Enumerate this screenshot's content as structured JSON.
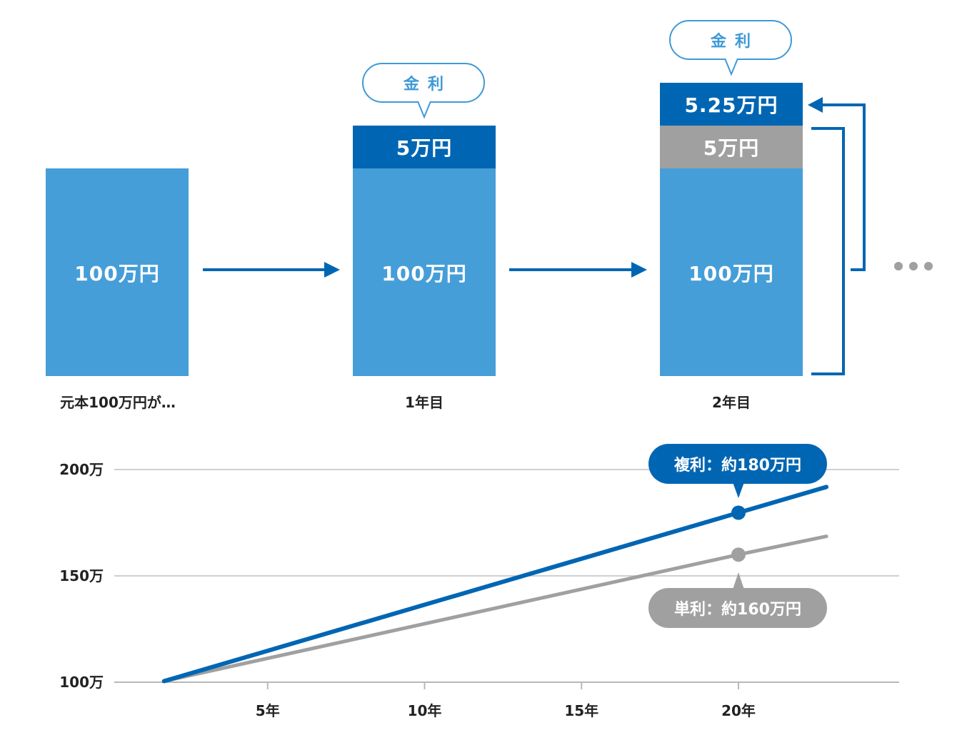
{
  "diagram": {
    "stage0": {
      "principal_label": "100万円",
      "caption": "元本100万円が…"
    },
    "stage1": {
      "principal_label": "100万円",
      "interest_label": "5万円",
      "bubble": "金利",
      "caption": "1年目"
    },
    "stage2": {
      "principal_label": "100万円",
      "prev_interest_label": "5万円",
      "interest_label": "5.25万円",
      "bubble": "金利",
      "caption": "2年目"
    },
    "colors": {
      "principal": "#469ed8",
      "interest": "#0066b3",
      "previous_interest": "#a0a0a0",
      "arrow": "#0066b3"
    }
  },
  "chart_data": {
    "type": "line",
    "y_ticks": [
      {
        "value": 100,
        "label": "100万"
      },
      {
        "value": 150,
        "label": "150万"
      },
      {
        "value": 200,
        "label": "200万"
      }
    ],
    "x_ticks": [
      {
        "value": 5,
        "label": "5年"
      },
      {
        "value": 10,
        "label": "10年"
      },
      {
        "value": 15,
        "label": "15年"
      },
      {
        "value": 20,
        "label": "20年"
      }
    ],
    "xlim": [
      0,
      25
    ],
    "ylim": [
      100,
      200
    ],
    "grid": true,
    "series": [
      {
        "key": "compound",
        "color": "#0066b3",
        "points": [
          [
            1.7,
            100.5
          ],
          [
            20,
            179.7
          ],
          [
            22.8,
            191.8
          ]
        ],
        "marker": [
          20,
          179.7
        ],
        "label": "複利：約180万円"
      },
      {
        "key": "simple",
        "color": "#a0a0a0",
        "points": [
          [
            1.7,
            100.5
          ],
          [
            20,
            160
          ],
          [
            22.8,
            168.6
          ]
        ],
        "marker": [
          20,
          160
        ],
        "label": "単利：約160万円"
      }
    ],
    "ellipsis": "…"
  }
}
